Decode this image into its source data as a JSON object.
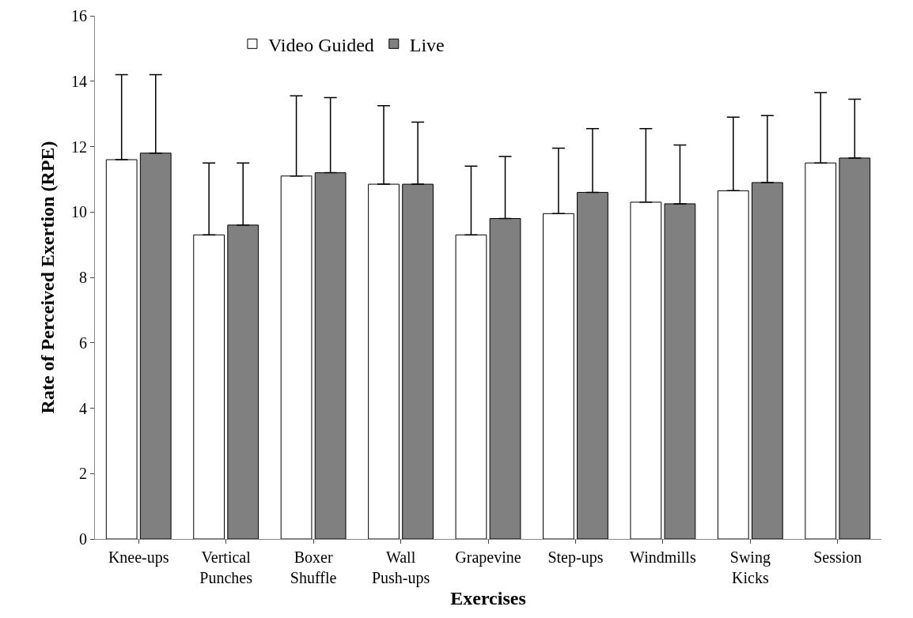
{
  "chart_data": {
    "type": "bar",
    "xlabel": "Exercises",
    "ylabel": "Rate of Perceived Exertion (RPE)",
    "categories": [
      "Knee-ups",
      "Vertical\nPunches",
      "Boxer\nShuffle",
      "Wall\nPush-ups",
      "Grapevine",
      "Step-ups",
      "Windmills",
      "Swing\nKicks",
      "Session"
    ],
    "series": [
      {
        "name": "Video Guided",
        "color": "#ffffff",
        "values": [
          11.6,
          9.3,
          11.1,
          10.85,
          9.3,
          9.95,
          10.3,
          10.65,
          11.5
        ],
        "errors": [
          [
            11.6,
            14.2
          ],
          [
            9.3,
            11.5
          ],
          [
            11.1,
            13.55
          ],
          [
            10.85,
            13.25
          ],
          [
            9.3,
            11.4
          ],
          [
            9.95,
            11.95
          ],
          [
            10.3,
            12.55
          ],
          [
            10.65,
            12.9
          ],
          [
            11.5,
            13.65
          ]
        ]
      },
      {
        "name": "Live",
        "color": "#808080",
        "values": [
          11.8,
          9.6,
          11.2,
          10.85,
          9.8,
          10.6,
          10.25,
          10.9,
          11.65
        ],
        "errors": [
          [
            11.8,
            14.2
          ],
          [
            9.6,
            11.5
          ],
          [
            11.2,
            13.5
          ],
          [
            10.85,
            12.75
          ],
          [
            9.8,
            11.7
          ],
          [
            10.6,
            12.55
          ],
          [
            10.25,
            12.05
          ],
          [
            10.9,
            12.95
          ],
          [
            11.65,
            13.45
          ]
        ]
      }
    ],
    "ylim": [
      0,
      16
    ],
    "yticks": [
      0,
      2,
      4,
      6,
      8,
      10,
      12,
      14,
      16
    ],
    "grid": false,
    "legend": "top left"
  }
}
